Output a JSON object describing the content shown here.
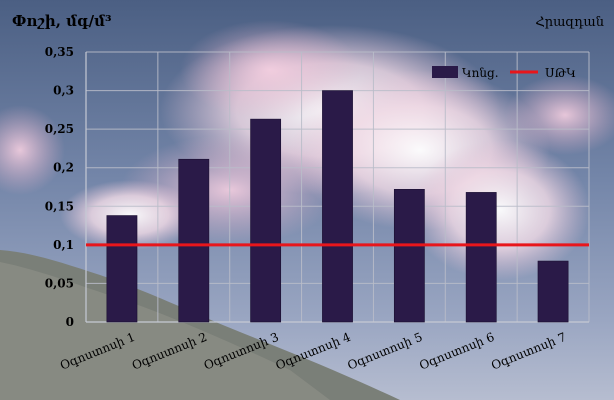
{
  "chart_data": {
    "type": "bar",
    "unit_label": "Փոշի, մգ/մ³",
    "city_label": "Հրազդան",
    "categories": [
      "Օգոստոսի 1",
      "Օգոստոսի 2",
      "Օգոստոսի 3",
      "Օգոստոսի 4",
      "Օգոստոսի 5",
      "Օգոստոսի 6",
      "Օգոստոսի 7"
    ],
    "series": [
      {
        "name": "Կոնց.",
        "values": [
          0.138,
          0.211,
          0.263,
          0.3,
          0.172,
          0.168,
          0.079
        ],
        "color": "#2a1a48"
      }
    ],
    "reference_line": {
      "name": "ՍԹԿ",
      "value": 0.1,
      "color": "#e8161b"
    },
    "y_ticks": [
      "0",
      "0,05",
      "0,1",
      "0,15",
      "0,2",
      "0,25",
      "0,3",
      "0,35"
    ],
    "ylim": [
      0,
      0.35
    ],
    "grid": true,
    "legend": "top-right"
  }
}
